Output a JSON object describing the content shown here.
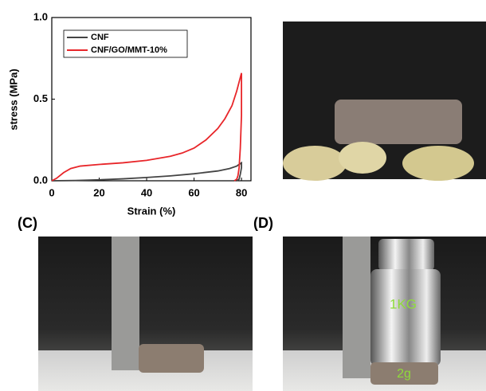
{
  "chart_data": {
    "type": "line",
    "xlabel": "Strain (%)",
    "ylabel": "stress (MPa)",
    "xlim": [
      0,
      84
    ],
    "ylim": [
      0,
      1
    ],
    "xticks": [
      0,
      20,
      40,
      60,
      80
    ],
    "yticks": [
      {
        "value": 0,
        "label": "0.0"
      },
      {
        "value": 0.5,
        "label": "0.5"
      },
      {
        "value": 1,
        "label": "1.0"
      }
    ],
    "grid": false,
    "legend": "upper left",
    "series": [
      {
        "name": "CNF",
        "color": "#444444",
        "x": [
          0,
          10,
          20,
          30,
          40,
          50,
          60,
          70,
          75,
          78,
          80,
          80,
          79.5,
          79,
          78
        ],
        "values": [
          0,
          0.002,
          0.006,
          0.012,
          0.02,
          0.03,
          0.043,
          0.06,
          0.075,
          0.09,
          0.11,
          0.08,
          0.04,
          0.01,
          0
        ]
      },
      {
        "name": "CNF/GO/MMT-10%",
        "color": "#e8262a",
        "x": [
          0,
          2,
          5,
          8,
          12,
          20,
          30,
          40,
          50,
          55,
          60,
          65,
          70,
          73,
          76,
          78,
          80,
          80,
          79.5,
          79,
          78.5,
          78,
          77
        ],
        "values": [
          0,
          0.015,
          0.05,
          0.075,
          0.09,
          0.1,
          0.11,
          0.125,
          0.15,
          0.17,
          0.2,
          0.25,
          0.32,
          0.38,
          0.46,
          0.55,
          0.66,
          0.4,
          0.2,
          0.08,
          0.03,
          0.01,
          0
        ]
      }
    ]
  },
  "panels": {
    "c_label": "(C)",
    "d_label": "(D)",
    "weight_big": "1KG",
    "weight_small": "2g"
  }
}
